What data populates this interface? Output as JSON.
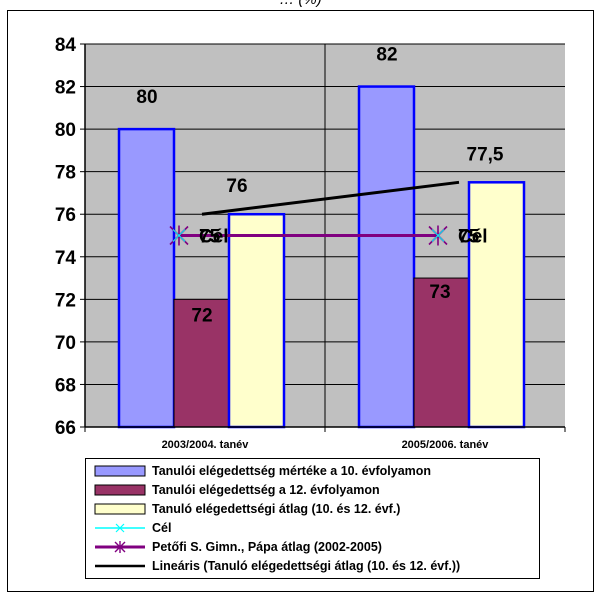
{
  "title": "… (%)",
  "chart_data": {
    "type": "bar",
    "categories": [
      "2003/2004. tanév",
      "2005/2006. tanév"
    ],
    "ylim": [
      66,
      84
    ],
    "yticks": [
      66,
      68,
      70,
      72,
      74,
      76,
      78,
      80,
      82,
      84
    ],
    "grid": true,
    "legend_position": "bottom",
    "series": [
      {
        "name": "Tanulói elégedettség mértéke a 10. évfolyamon",
        "kind": "bar",
        "values": [
          80,
          82
        ],
        "labels": [
          "80",
          "82"
        ],
        "color": "#9999ff"
      },
      {
        "name": "Tanulói elégedettség a 12. évfolyamon",
        "kind": "bar",
        "values": [
          72,
          73
        ],
        "labels": [
          "72",
          "73"
        ],
        "color": "#993366"
      },
      {
        "name": "Tanuló elégedettségi átlag (10. és 12. évf.)",
        "kind": "bar",
        "values": [
          76,
          77.5
        ],
        "labels": [
          "76",
          "77,5"
        ],
        "color": "#ffffcc"
      },
      {
        "name": "Cél",
        "kind": "line",
        "values": [
          75,
          75
        ],
        "labels": [
          "Cél",
          "Cél"
        ],
        "color": "#00ffff"
      },
      {
        "name": "Petőfi S. Gimn., Pápa átlag (2002-2005)",
        "kind": "line",
        "values": [
          75,
          75
        ],
        "labels": [
          "75",
          "75"
        ],
        "color": "#800080"
      },
      {
        "name": "Lineáris (Tanuló elégedettségi átlag (10. és 12. évf.))",
        "kind": "trendline",
        "values": [
          76,
          77.5
        ],
        "color": "#000000"
      }
    ]
  }
}
